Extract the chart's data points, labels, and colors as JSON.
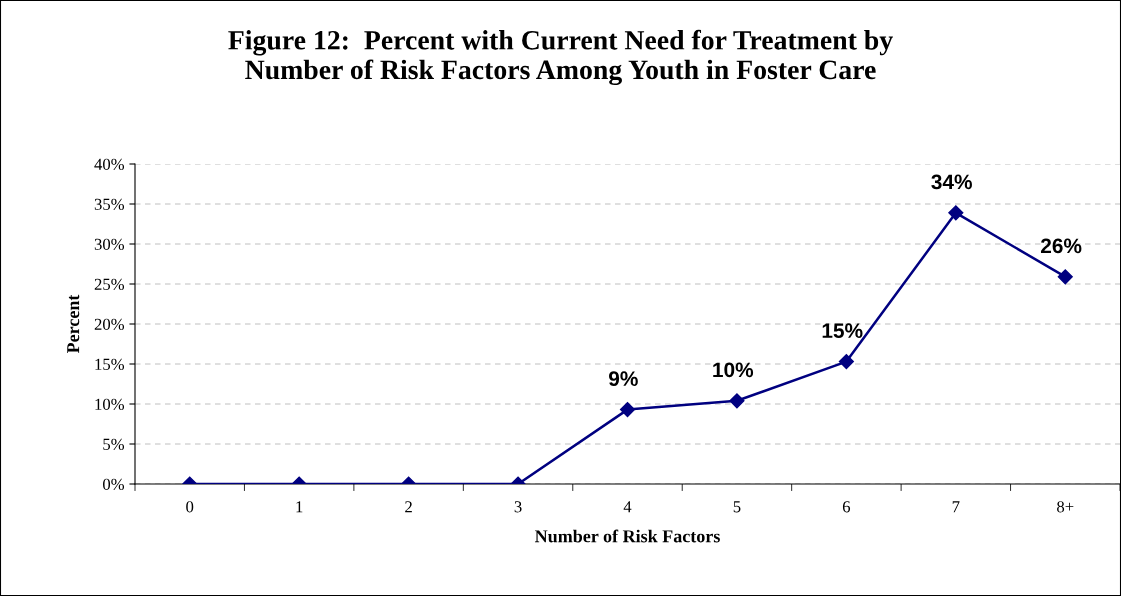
{
  "chart_data": {
    "type": "line",
    "title": "Figure 12:  Percent with Current Need for Treatment by\nNumber of Risk Factors Among Youth in Foster Care",
    "xlabel": "Number of Risk Factors",
    "ylabel": "Percent",
    "categories": [
      "0",
      "1",
      "2",
      "3",
      "4",
      "5",
      "6",
      "7",
      "8+"
    ],
    "series": [
      {
        "color": "#000080",
        "values": [
          0,
          0,
          0,
          0,
          9.3,
          10.4,
          15.3,
          33.9,
          25.9
        ],
        "value_labels": [
          null,
          null,
          null,
          null,
          "9%",
          "10%",
          "15%",
          "34%",
          "26%"
        ]
      }
    ],
    "ylim": [
      0,
      40
    ],
    "yticks": [
      {
        "value": 0,
        "label": "0%"
      },
      {
        "value": 5,
        "label": "5%"
      },
      {
        "value": 10,
        "label": "10%"
      },
      {
        "value": 15,
        "label": "15%"
      },
      {
        "value": 20,
        "label": "20%"
      },
      {
        "value": 25,
        "label": "25%"
      },
      {
        "value": 30,
        "label": "30%"
      },
      {
        "value": 35,
        "label": "35%"
      },
      {
        "value": 40,
        "label": "40%"
      }
    ],
    "grid": "y",
    "legend": false,
    "marker": "diamond",
    "line_style": "solid"
  }
}
